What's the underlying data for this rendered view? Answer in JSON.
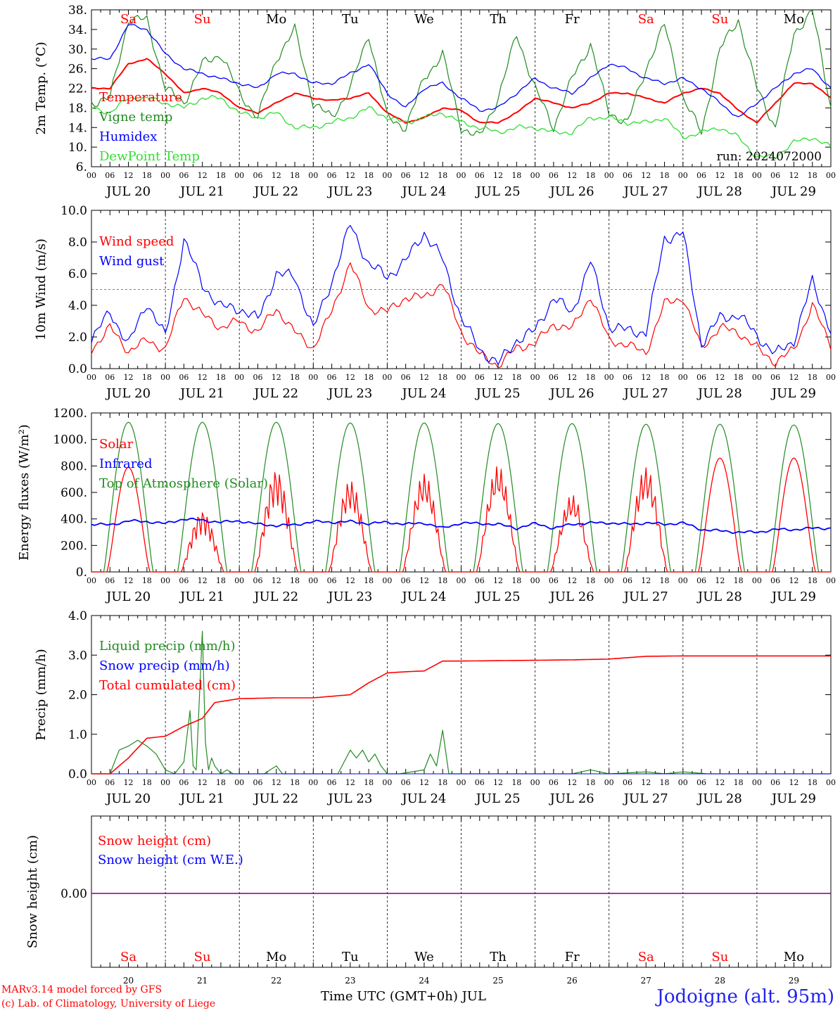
{
  "footer": {
    "model_line": "MARv3.14 model forced by GFS",
    "lab_line": "(c) Lab. of Climatology, University of Liege",
    "x_title": "Time UTC (GMT+0h) JUL",
    "station": "Jodoigne (alt. 95m)"
  },
  "days": {
    "weekdays": [
      "Sa",
      "Su",
      "Mo",
      "Tu",
      "We",
      "Th",
      "Fr",
      "Sa",
      "Su",
      "Mo"
    ],
    "weekend_flags": [
      true,
      true,
      false,
      false,
      false,
      false,
      false,
      true,
      true,
      false
    ],
    "date_labels": [
      "JUL 20",
      "JUL 21",
      "JUL 22",
      "JUL 23",
      "JUL 24",
      "JUL 25",
      "JUL 26",
      "JUL 27",
      "JUL 28",
      "JUL 29"
    ],
    "day_numbers": [
      "20",
      "21",
      "22",
      "23",
      "24",
      "25",
      "26",
      "27",
      "28",
      "29"
    ],
    "hour_ticks": [
      "00",
      "06",
      "12",
      "18"
    ],
    "final_tick": "00"
  },
  "colors": {
    "red": "#ff0000",
    "green": "#228b22",
    "blue": "#0000ff",
    "lightgreen": "#33dd33",
    "purple": "#800080"
  },
  "chart_data": [
    {
      "type": "line",
      "ylabel": "2m Temp. (°C)",
      "ylim": [
        6,
        38
      ],
      "yticks": [
        "6.",
        "10.",
        "14.",
        "18.",
        "22.",
        "26.",
        "30.",
        "34.",
        "38."
      ],
      "run_label": "run: 2024072000",
      "x_unit": "hours since 2024-07-20 00 UTC",
      "series": [
        {
          "name": "Temperature",
          "color": "red",
          "x": [
            0,
            6,
            12,
            18,
            24,
            30,
            36,
            42,
            48,
            54,
            60,
            66,
            72,
            78,
            84,
            90,
            96,
            102,
            108,
            114,
            120,
            126,
            132,
            138,
            144,
            150,
            156,
            162,
            168,
            174,
            180,
            186,
            192,
            198,
            204,
            210,
            216,
            222,
            228,
            234,
            240
          ],
          "y": [
            22,
            22,
            27,
            28,
            25,
            21,
            22,
            21,
            18,
            17,
            19,
            21,
            20,
            19.5,
            20,
            21,
            17,
            15,
            16,
            18,
            17.5,
            15,
            15,
            17,
            20,
            19,
            18,
            19,
            21,
            21,
            20,
            19,
            21,
            22,
            21,
            17.5,
            15,
            19,
            23,
            23,
            20
          ]
        },
        {
          "name": "Vigne temp",
          "color": "green",
          "x": [
            0,
            6,
            12,
            18,
            24,
            30,
            36,
            42,
            48,
            54,
            60,
            66,
            72,
            78,
            84,
            90,
            96,
            102,
            108,
            114,
            120,
            126,
            132,
            138,
            144,
            150,
            156,
            162,
            168,
            174,
            180,
            186,
            192,
            198,
            204,
            210,
            216,
            222,
            228,
            234,
            240
          ],
          "y": [
            19,
            20,
            36,
            36,
            22,
            19,
            27,
            29,
            21,
            16,
            28,
            34,
            19,
            16,
            22,
            33,
            16,
            14,
            24,
            29,
            14,
            12,
            20,
            33,
            22,
            14,
            24,
            31,
            17,
            15,
            26,
            35,
            20,
            13,
            30,
            36,
            22,
            14,
            33,
            38,
            18
          ]
        },
        {
          "name": "Humidex",
          "color": "blue",
          "x": [
            0,
            6,
            12,
            18,
            24,
            30,
            36,
            42,
            48,
            54,
            60,
            66,
            72,
            78,
            84,
            90,
            96,
            102,
            108,
            114,
            120,
            126,
            132,
            138,
            144,
            150,
            156,
            162,
            168,
            174,
            180,
            186,
            192,
            198,
            204,
            210,
            216,
            222,
            228,
            234,
            240
          ],
          "y": [
            28,
            28,
            35,
            34,
            29,
            26,
            25,
            24,
            23,
            22,
            25,
            25,
            23,
            23,
            25,
            27,
            21,
            18,
            22,
            23,
            20,
            17.5,
            18,
            21,
            24,
            22,
            21,
            24,
            27,
            26,
            24,
            23,
            24,
            22,
            19,
            16,
            19,
            22,
            25,
            26,
            22
          ]
        },
        {
          "name": "DewPoint Temp",
          "color": "lightgreen",
          "x": [
            0,
            6,
            12,
            18,
            24,
            30,
            36,
            42,
            48,
            54,
            60,
            66,
            72,
            78,
            84,
            90,
            96,
            102,
            108,
            114,
            120,
            126,
            132,
            138,
            144,
            150,
            156,
            162,
            168,
            174,
            180,
            186,
            192,
            198,
            204,
            210,
            216,
            222,
            228,
            234,
            240
          ],
          "y": [
            18,
            17,
            20,
            20,
            19,
            18,
            20,
            20,
            17,
            16,
            17,
            14,
            14,
            15,
            16,
            18,
            16,
            15,
            16,
            17,
            15,
            14,
            13,
            14,
            14,
            13,
            13,
            16,
            16,
            15,
            15,
            16,
            12,
            13,
            14,
            12,
            8,
            8,
            11,
            12,
            10
          ]
        }
      ]
    },
    {
      "type": "line",
      "ylabel": "10m Wind (m/s)",
      "ylim": [
        0,
        10
      ],
      "yticks": [
        "0.0",
        "2.0",
        "4.0",
        "6.0",
        "8.0",
        "10.0"
      ],
      "reference_line": 5,
      "series": [
        {
          "name": "Wind speed",
          "color": "red",
          "x": [
            0,
            6,
            12,
            18,
            24,
            30,
            36,
            42,
            48,
            54,
            60,
            66,
            72,
            78,
            84,
            90,
            96,
            102,
            108,
            114,
            120,
            126,
            132,
            138,
            144,
            150,
            156,
            162,
            168,
            174,
            180,
            186,
            192,
            198,
            204,
            210,
            216,
            222,
            228,
            234,
            240
          ],
          "y": [
            1.2,
            2.6,
            1.1,
            1.8,
            1.2,
            4.6,
            3.4,
            2.6,
            3.0,
            2.3,
            3.8,
            2.3,
            1.3,
            3.6,
            6.7,
            3.8,
            3.6,
            4.5,
            4.5,
            5.4,
            2.3,
            0.9,
            0.2,
            1.3,
            1.6,
            2.8,
            2.5,
            4.6,
            1.8,
            1.5,
            1.0,
            4.1,
            4.5,
            1.3,
            2.6,
            2.3,
            1.3,
            0.4,
            1.2,
            4.0,
            1.5
          ]
        },
        {
          "name": "Wind gust",
          "color": "blue",
          "x": [
            0,
            6,
            12,
            18,
            24,
            30,
            36,
            42,
            48,
            54,
            60,
            66,
            72,
            78,
            84,
            90,
            96,
            102,
            108,
            114,
            120,
            126,
            132,
            138,
            144,
            150,
            156,
            162,
            168,
            174,
            180,
            186,
            192,
            198,
            204,
            210,
            216,
            222,
            228,
            234,
            240
          ],
          "y": [
            1.8,
            3.6,
            1.5,
            4.2,
            2.0,
            8.2,
            5.3,
            3.9,
            3.8,
            3.1,
            6.0,
            5.8,
            2.5,
            5.5,
            9.1,
            6.6,
            5.8,
            6.8,
            8.6,
            6.9,
            3.2,
            1.2,
            0.3,
            1.8,
            2.4,
            4.5,
            3.5,
            6.8,
            2.7,
            2.4,
            2.3,
            8.2,
            8.6,
            1.6,
            3.2,
            3.4,
            2.1,
            0.9,
            1.8,
            5.5,
            2.4
          ]
        }
      ]
    },
    {
      "type": "line",
      "ylabel": "Energy fluxes (W/m²)",
      "ylim": [
        0,
        1200
      ],
      "yticks": [
        "0.",
        "200.",
        "400.",
        "600.",
        "800.",
        "1000.",
        "1200."
      ],
      "series": [
        {
          "name": "Solar",
          "color": "red",
          "daily_peak_hour": 12,
          "daily_max": [
            790,
            460,
            770,
            690,
            740,
            800,
            580,
            790,
            860,
            860
          ]
        },
        {
          "name": "Infrared",
          "color": "blue",
          "x": [
            0,
            6,
            12,
            18,
            24,
            30,
            36,
            42,
            48,
            54,
            60,
            66,
            72,
            78,
            84,
            90,
            96,
            102,
            108,
            114,
            120,
            126,
            132,
            138,
            144,
            150,
            156,
            162,
            168,
            174,
            180,
            186,
            192,
            198,
            204,
            210,
            216,
            222,
            228,
            234,
            240
          ],
          "y": [
            360,
            355,
            385,
            380,
            365,
            400,
            390,
            375,
            385,
            360,
            350,
            355,
            380,
            375,
            380,
            365,
            375,
            360,
            370,
            330,
            370,
            365,
            360,
            330,
            365,
            330,
            360,
            370,
            370,
            360,
            370,
            360,
            370,
            320,
            310,
            300,
            300,
            320,
            320,
            330,
            330
          ]
        },
        {
          "name": "Top of Atmosphere (Solar)",
          "color": "green",
          "daily_peak_hour": 12,
          "daily_max": [
            1130,
            1130,
            1130,
            1125,
            1125,
            1120,
            1120,
            1115,
            1115,
            1110
          ]
        }
      ]
    },
    {
      "type": "line",
      "ylabel": "Precip (mm/h)",
      "ylim": [
        0,
        4
      ],
      "yticks": [
        "0.0",
        "1.0",
        "2.0",
        "3.0",
        "4.0"
      ],
      "series": [
        {
          "name": "Liquid precip (mm/h)",
          "color": "green",
          "x": [
            0,
            3,
            6,
            9,
            12,
            15,
            18,
            21,
            24,
            27,
            30,
            32,
            33,
            34,
            36,
            37,
            38,
            39,
            40,
            42,
            44,
            46,
            48,
            56,
            60,
            62,
            72,
            80,
            84,
            86,
            88,
            90,
            92,
            94,
            96,
            100,
            108,
            110,
            112,
            114,
            116,
            120,
            132,
            144,
            156,
            162,
            168,
            180,
            186,
            192,
            200,
            216,
            240
          ],
          "y": [
            0,
            0,
            0,
            0.6,
            0.7,
            0.85,
            0.7,
            0.5,
            0.1,
            0,
            0.3,
            1.6,
            0.2,
            0.1,
            3.6,
            0.8,
            0.1,
            0.4,
            0.2,
            0,
            0.1,
            0,
            0,
            0,
            0.2,
            0,
            0,
            0,
            0.6,
            0.4,
            0.6,
            0.3,
            0.5,
            0.2,
            0,
            0,
            0.1,
            0.5,
            0.2,
            1.1,
            0,
            0,
            0,
            0,
            0,
            0.1,
            0,
            0.05,
            0,
            0.05,
            0,
            0,
            0
          ]
        },
        {
          "name": "Snow precip (mm/h)",
          "color": "blue",
          "x": [
            0,
            240
          ],
          "y": [
            0,
            0
          ]
        },
        {
          "name": "Total cumulated (cm)",
          "color": "red",
          "x": [
            0,
            6,
            12,
            18,
            24,
            30,
            36,
            40,
            48,
            60,
            72,
            84,
            90,
            96,
            102,
            108,
            114,
            120,
            132,
            144,
            156,
            168,
            180,
            192,
            204,
            216,
            228,
            240
          ],
          "y": [
            0,
            0,
            0.4,
            0.9,
            0.95,
            1.2,
            1.4,
            1.8,
            1.9,
            1.92,
            1.92,
            2.0,
            2.3,
            2.55,
            2.58,
            2.6,
            2.85,
            2.85,
            2.86,
            2.87,
            2.88,
            2.9,
            2.97,
            2.98,
            2.98,
            2.98,
            2.98,
            2.98
          ]
        }
      ]
    },
    {
      "type": "line",
      "ylabel": "Snow height (cm)",
      "ytick_label": "0.00",
      "series": [
        {
          "name": "Snow height (cm)",
          "color": "red",
          "x": [
            0,
            240
          ],
          "y": [
            0,
            0
          ]
        },
        {
          "name": "Snow height (cm W.E.)",
          "color": "blue",
          "x": [
            0,
            240
          ],
          "y": [
            0,
            0
          ]
        }
      ]
    }
  ]
}
